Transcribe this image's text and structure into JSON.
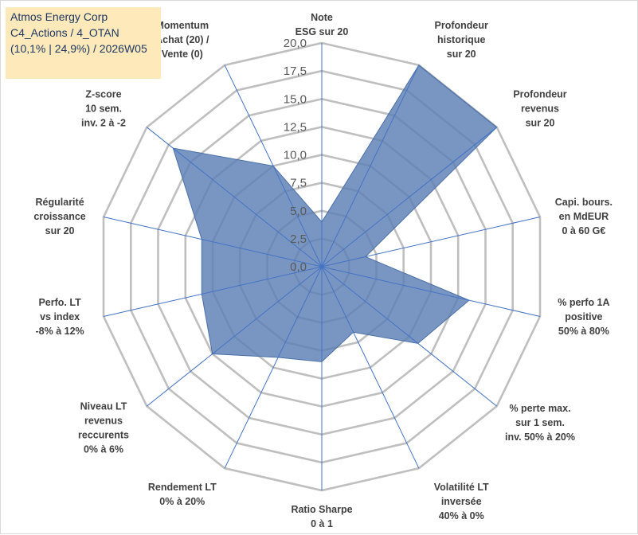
{
  "title_box": {
    "line1": "Atmos Energy Corp",
    "line2": "C4_Actions / 4_OTAN",
    "line3": "(10,1% | 24,9%) / 2026W05"
  },
  "colors": {
    "fill": "#5b7fb5",
    "grid": "#bfbfbf",
    "axis": "#4472c4",
    "title_bg": "#fde9b9",
    "title_text": "#1f3864"
  },
  "chart_data": {
    "type": "radar",
    "r_min": 0,
    "r_max": 20,
    "ticks": [
      0,
      2.5,
      5,
      7.5,
      10,
      12.5,
      15,
      17.5,
      20
    ],
    "tick_labels": [
      "0,0",
      "2,5",
      "5,0",
      "7,5",
      "10,0",
      "12,5",
      "15,0",
      "17,5",
      "20,0"
    ],
    "axes": [
      {
        "label": [
          "Note",
          "ESG sur 20"
        ],
        "value": 4.0
      },
      {
        "label": [
          "Profondeur",
          "historique",
          "sur 20"
        ],
        "value": 20.0
      },
      {
        "label": [
          "Profondeur",
          "revenus",
          "sur 20"
        ],
        "value": 20.0
      },
      {
        "label": [
          "Capi. bours.",
          "en MdEUR",
          "0 à 60 G€"
        ],
        "value": 4.0
      },
      {
        "label": [
          "% perfo 1A",
          "positive",
          "50% à 80%"
        ],
        "value": 13.5
      },
      {
        "label": [
          "% perte max.",
          "sur 1 sem.",
          "inv. 50% à 20%"
        ],
        "value": 11.0
      },
      {
        "label": [
          "Volatilité LT",
          "inversée",
          "40% à 0%"
        ],
        "value": 6.5
      },
      {
        "label": [
          "Ratio Sharpe",
          "0 à 1"
        ],
        "value": 8.5
      },
      {
        "label": [
          "Rendement LT",
          "0% à 20%"
        ],
        "value": 9.0
      },
      {
        "label": [
          "Niveau LT",
          "revenus",
          "reccurents",
          "0% à 6%"
        ],
        "value": 12.5
      },
      {
        "label": [
          "Perfo. LT",
          "vs index",
          "-8% à 12%"
        ],
        "value": 11.0
      },
      {
        "label": [
          "Régularité",
          "croissance",
          "sur 20"
        ],
        "value": 11.0
      },
      {
        "label": [
          "Z-score",
          "10 sem.",
          "inv. 2 à -2"
        ],
        "value": 17.0
      },
      {
        "label": [
          "Momentum",
          "Achat (20) /",
          "Vente (0)"
        ],
        "value": 10.0
      }
    ]
  }
}
